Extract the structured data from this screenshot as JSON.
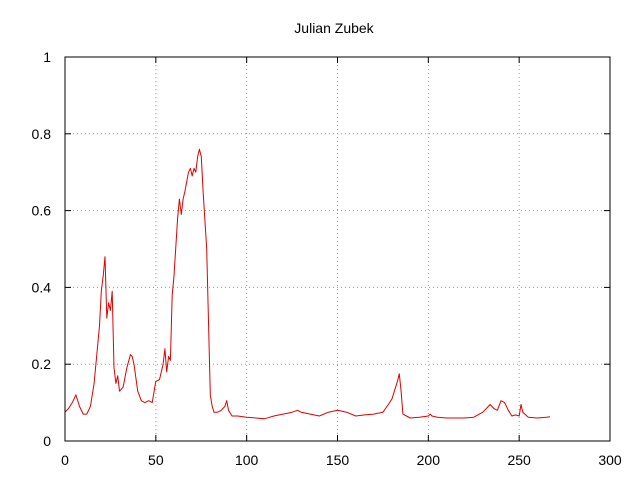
{
  "chart_data": {
    "type": "line",
    "title": "Julian Zubek",
    "xlabel": "",
    "ylabel": "",
    "xlim": [
      0,
      300
    ],
    "ylim": [
      0,
      1
    ],
    "xticks": [
      0,
      50,
      100,
      150,
      200,
      250,
      300
    ],
    "yticks": [
      0,
      0.2,
      0.4,
      0.6,
      0.8,
      1
    ],
    "ytick_labels": [
      "0",
      "0.2",
      "0.4",
      "0.6",
      "0.8",
      "1"
    ],
    "grid": true,
    "line_color": "#e00000",
    "series": [
      {
        "x": [
          0,
          2,
          4,
          6,
          8,
          10,
          12,
          14,
          16,
          18,
          19,
          20,
          21,
          22,
          23,
          24,
          25,
          26,
          27,
          28,
          29,
          30,
          31,
          32,
          34,
          36,
          37,
          38,
          40,
          42,
          44,
          46,
          48,
          50,
          52,
          54,
          55,
          56,
          57,
          58,
          59,
          60,
          62,
          63,
          64,
          65,
          66,
          68,
          69,
          70,
          71,
          72,
          73,
          74,
          75,
          76,
          78,
          80,
          81,
          82,
          84,
          86,
          88,
          89,
          90,
          92,
          95,
          100,
          105,
          110,
          115,
          120,
          125,
          128,
          130,
          135,
          140,
          145,
          150,
          155,
          160,
          165,
          170,
          175,
          178,
          180,
          182,
          183,
          184,
          185,
          186,
          188,
          190,
          195,
          200,
          201,
          202,
          205,
          210,
          215,
          220,
          225,
          230,
          232,
          234,
          236,
          238,
          240,
          242,
          244,
          246,
          248,
          250,
          251,
          252,
          255,
          260,
          265,
          267
        ],
        "y": [
          0.075,
          0.085,
          0.1,
          0.12,
          0.09,
          0.07,
          0.07,
          0.09,
          0.15,
          0.25,
          0.3,
          0.39,
          0.43,
          0.48,
          0.32,
          0.36,
          0.34,
          0.39,
          0.19,
          0.15,
          0.17,
          0.13,
          0.135,
          0.14,
          0.19,
          0.225,
          0.22,
          0.2,
          0.13,
          0.105,
          0.1,
          0.105,
          0.1,
          0.155,
          0.16,
          0.2,
          0.24,
          0.18,
          0.22,
          0.21,
          0.38,
          0.43,
          0.58,
          0.63,
          0.59,
          0.63,
          0.65,
          0.7,
          0.71,
          0.69,
          0.71,
          0.7,
          0.74,
          0.76,
          0.74,
          0.65,
          0.5,
          0.12,
          0.09,
          0.075,
          0.075,
          0.08,
          0.09,
          0.105,
          0.08,
          0.065,
          0.065,
          0.062,
          0.06,
          0.058,
          0.065,
          0.07,
          0.075,
          0.08,
          0.075,
          0.07,
          0.065,
          0.075,
          0.08,
          0.075,
          0.065,
          0.068,
          0.07,
          0.075,
          0.095,
          0.11,
          0.14,
          0.155,
          0.175,
          0.13,
          0.07,
          0.065,
          0.06,
          0.062,
          0.065,
          0.07,
          0.065,
          0.062,
          0.06,
          0.06,
          0.06,
          0.062,
          0.075,
          0.085,
          0.095,
          0.085,
          0.08,
          0.105,
          0.1,
          0.08,
          0.065,
          0.068,
          0.065,
          0.095,
          0.075,
          0.062,
          0.06,
          0.062,
          0.063
        ]
      }
    ]
  }
}
